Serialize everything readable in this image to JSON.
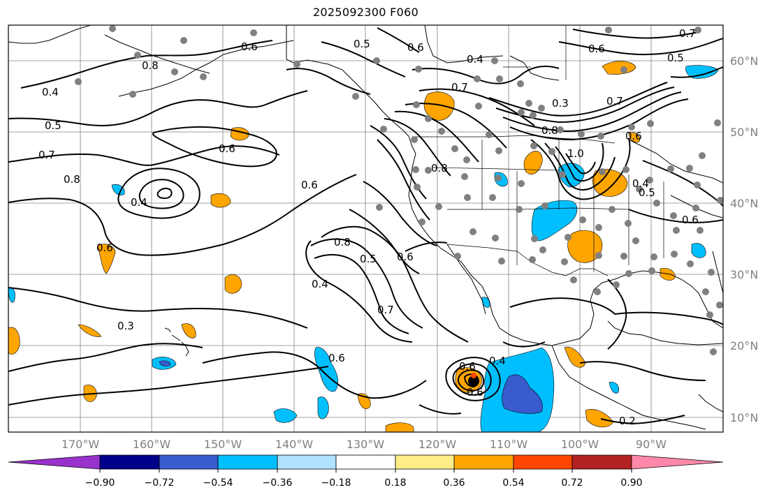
{
  "title": "2025092300 F060",
  "map": {
    "latitude_labels": [
      "60°N",
      "50°N",
      "40°N",
      "30°N",
      "20°N",
      "10°N"
    ],
    "longitude_labels": [
      "170°W",
      "160°W",
      "150°W",
      "140°W",
      "130°W",
      "120°W",
      "110°W",
      "100°W",
      "90°W"
    ],
    "contour_labels": [
      "0.7",
      "0.6",
      "0.5",
      "0.6",
      "0.8",
      "0.4",
      "0.5",
      "0.4",
      "0.5",
      "0.6",
      "0.7",
      "0.8",
      "0.7",
      "0.6",
      "0.6",
      "0.4",
      "0.7",
      "0.3",
      "0.6",
      "0.8",
      "0.6",
      "1.0",
      "0.8",
      "0.4",
      "0.6",
      "0.8",
      "0.5",
      "0.6",
      "0.4",
      "0.7",
      "0.6",
      "0.3",
      "0.4",
      "0.6",
      "0.2",
      "0.6",
      "0.5"
    ],
    "colors": {
      "contour": "#000000",
      "coast": "#000000",
      "grid": "#808080",
      "station": "#808080",
      "orange": "#ffa500",
      "sky": "#00bfff",
      "blue": "#3a5bcd"
    }
  },
  "colorbar": {
    "tick_labels": [
      "−0.90",
      "−0.72",
      "−0.54",
      "−0.36",
      "−0.18",
      "0.18",
      "0.36",
      "0.54",
      "0.72",
      "0.90"
    ],
    "colors": [
      "#9932cc",
      "#00008b",
      "#3a5bcd",
      "#00bfff",
      "#b0e2ff",
      "#ffffff",
      "#ffee88",
      "#ffa500",
      "#ff4500",
      "#b22222",
      "#ff88aa"
    ]
  }
}
